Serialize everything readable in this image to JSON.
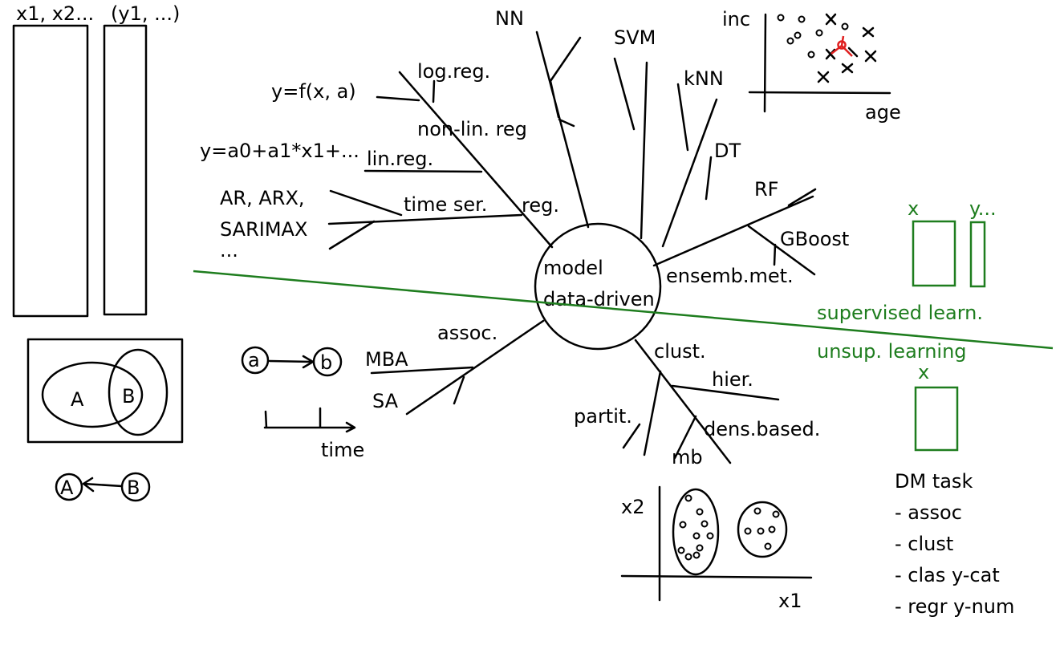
{
  "colors": {
    "ink": "#000000",
    "green": "#1e7d1e",
    "highlight": "#e02020"
  },
  "data_table": {
    "x_header": "x1, x2...",
    "y_header": "(y1, ...)"
  },
  "venn": {
    "a": "A",
    "b": "B"
  },
  "rule": {
    "a": "A",
    "b": "B"
  },
  "seq": {
    "a": "a",
    "b": "b",
    "time": "time"
  },
  "center": {
    "line1": "model",
    "line2": "data-driven"
  },
  "branches": {
    "reg": "reg.",
    "time_ser": "time ser.",
    "ar": "AR, ARX,",
    "sarimax": "SARIMAX",
    "ellipsis": "...",
    "lin_reg": "lin.reg.",
    "lin_formula": "y=a0+a1*x1+...",
    "nonlin_reg": "non-lin. reg",
    "nonlin_formula": "y=f(x, a)",
    "log_reg": "log.reg.",
    "nn": "NN",
    "svm": "SVM",
    "knn": "kNN",
    "dt": "DT",
    "rf": "RF",
    "gboost": "GBoost",
    "ensemb": "ensemb.met.",
    "assoc": "assoc.",
    "mba": "MBA",
    "sa": "SA",
    "clust": "clust.",
    "hier": "hier.",
    "partit": "partit.",
    "dens": "dens.based.",
    "mb": "mb"
  },
  "knn_plot": {
    "ylabel": "inc",
    "xlabel": "age"
  },
  "cluster_plot": {
    "ylabel": "x2",
    "xlabel": "x1"
  },
  "supervised": {
    "x": "x",
    "y": "y...",
    "label": "supervised  learn."
  },
  "unsupervised": {
    "label": "unsup. learning",
    "x": "x"
  },
  "dm_tasks": {
    "title": "DM task",
    "items": [
      "- assoc",
      "- clust",
      "- clas y-cat",
      "- regr y-num"
    ]
  }
}
